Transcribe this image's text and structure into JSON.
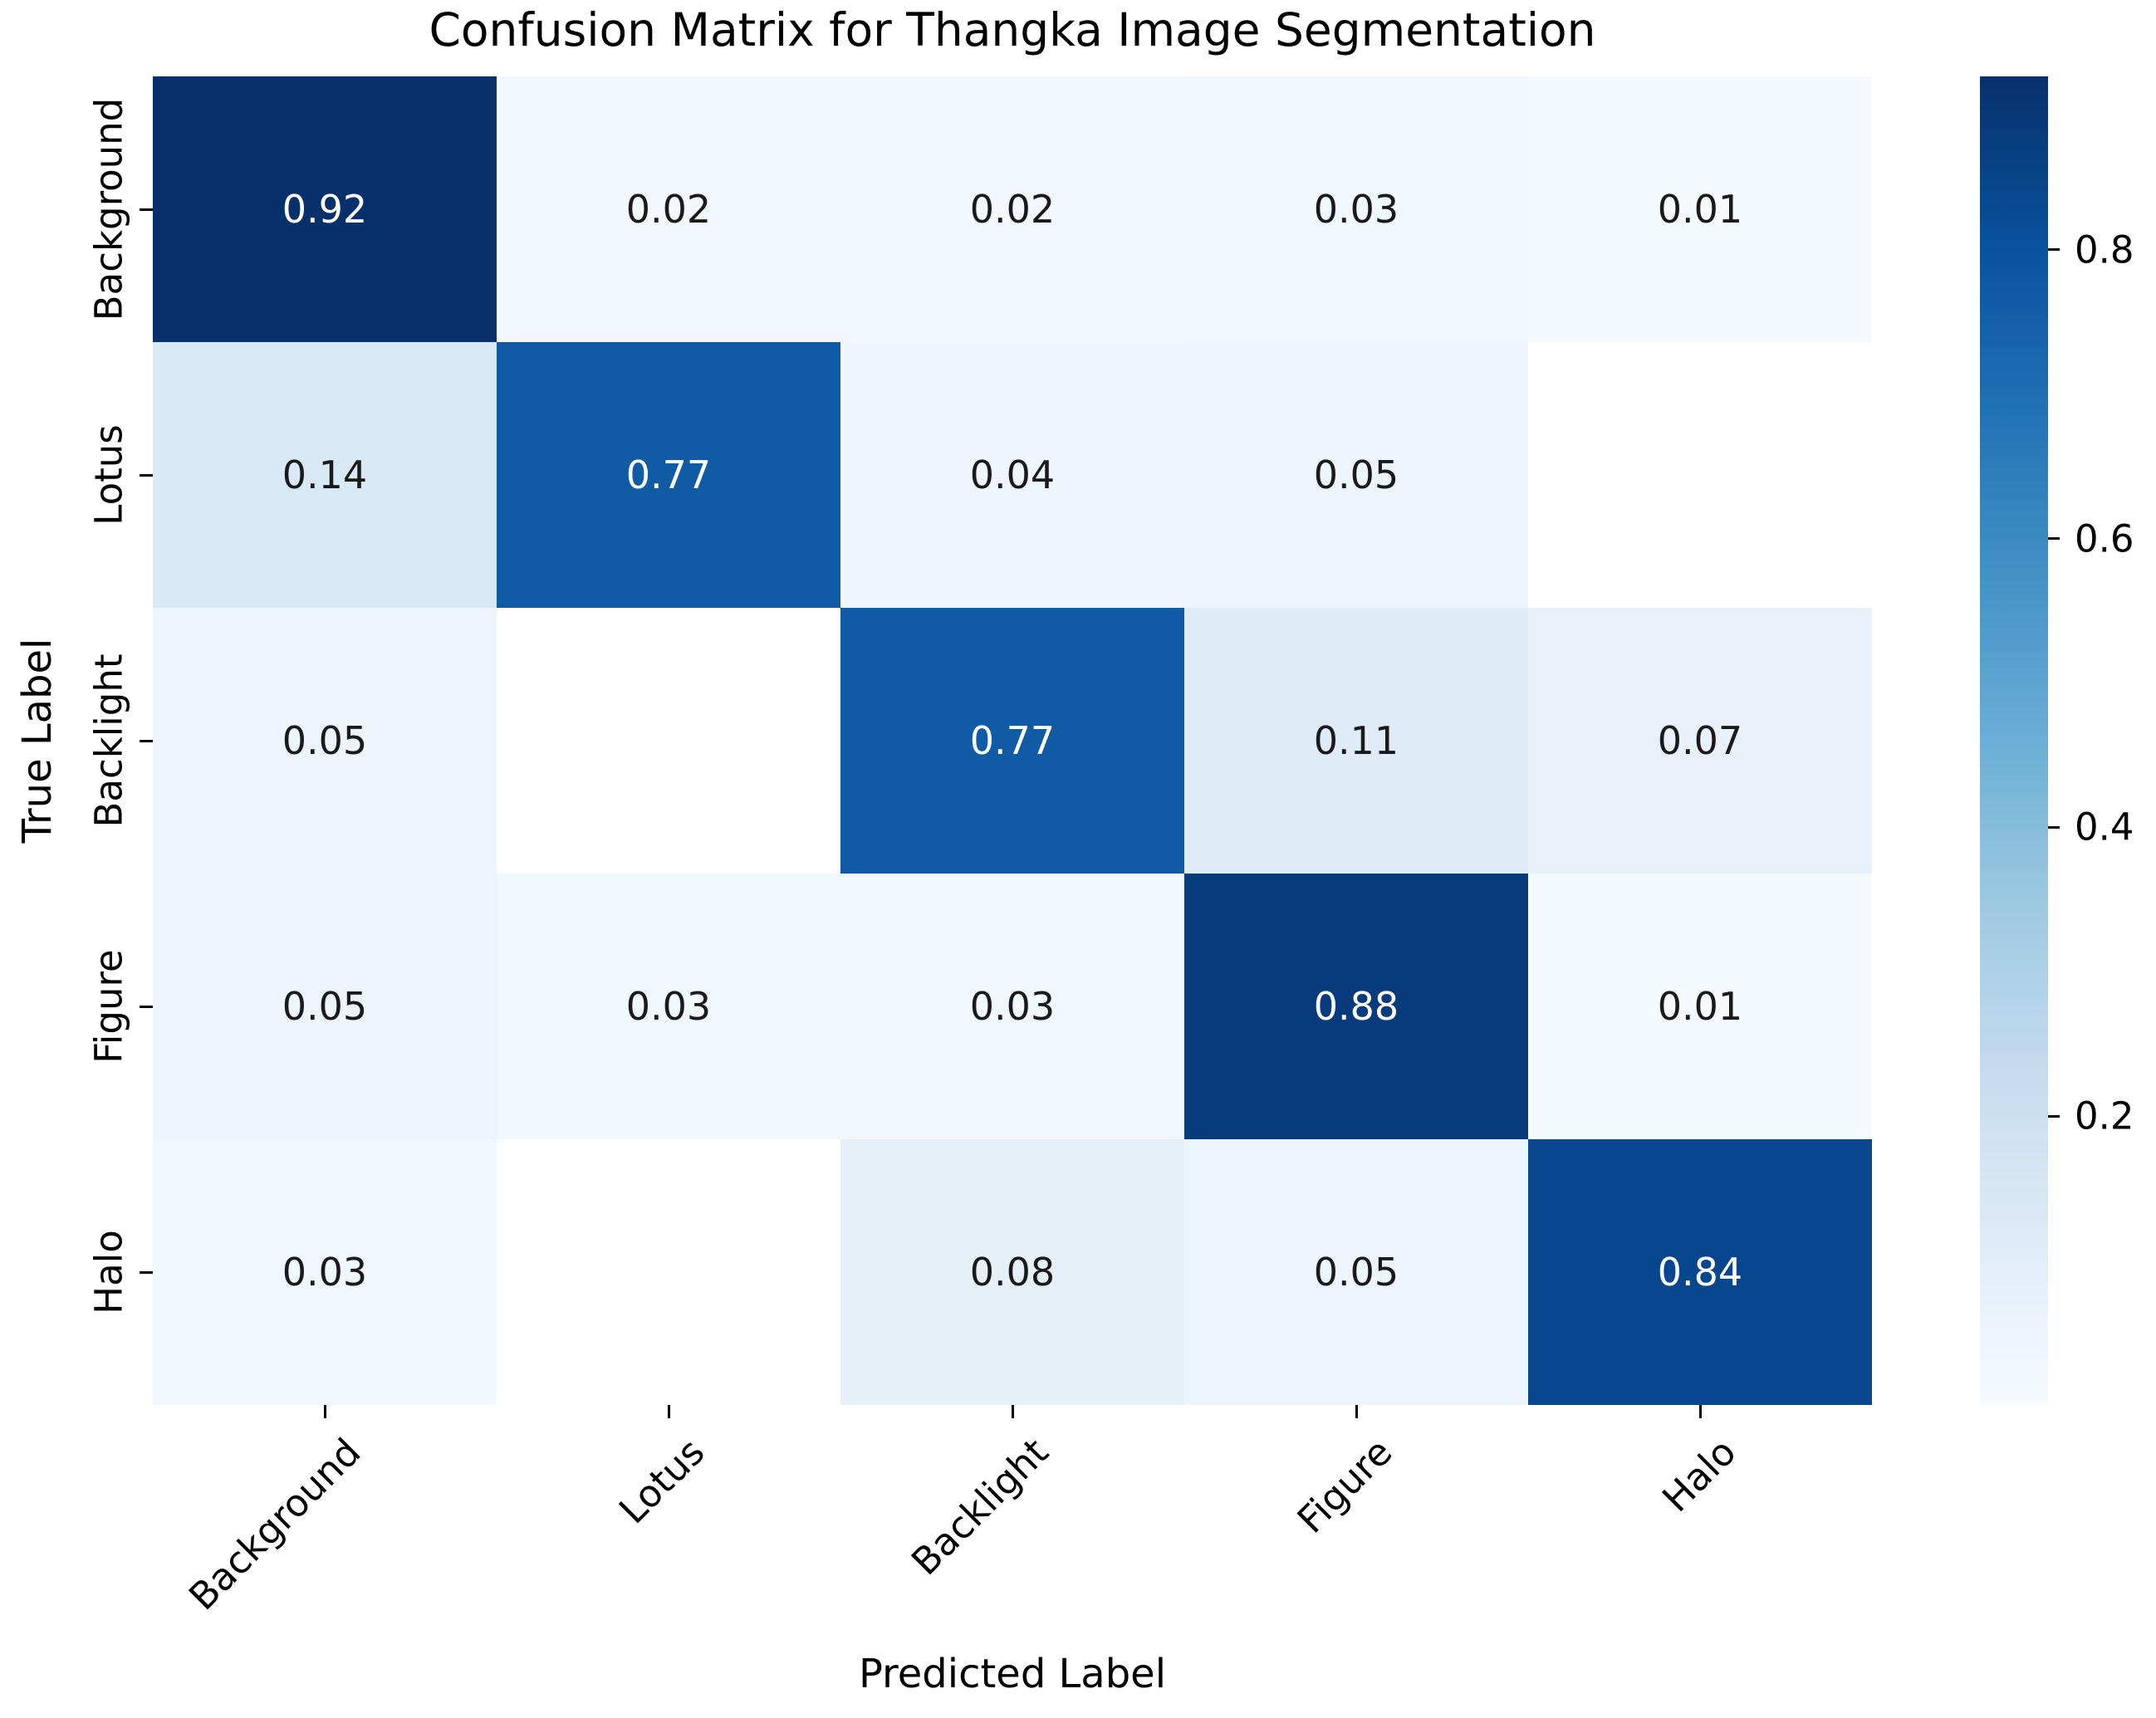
{
  "title": "Confusion Matrix for Thangka Image Segmentation",
  "chart_data": {
    "type": "heatmap",
    "title": "Confusion Matrix for Thangka Image Segmentation",
    "xlabel": "Predicted Label",
    "ylabel": "True Label",
    "x_categories": [
      "Background",
      "Lotus",
      "Backlight",
      "Figure",
      "Halo"
    ],
    "y_categories": [
      "Background",
      "Lotus",
      "Backlight",
      "Figure",
      "Halo"
    ],
    "matrix": [
      [
        0.92,
        0.02,
        0.02,
        0.03,
        0.01
      ],
      [
        0.14,
        0.77,
        0.04,
        0.05,
        null
      ],
      [
        0.05,
        null,
        0.77,
        0.11,
        0.07
      ],
      [
        0.05,
        0.03,
        0.03,
        0.88,
        0.01
      ],
      [
        0.03,
        null,
        0.08,
        0.05,
        0.84
      ]
    ],
    "annotation_decimals": 2,
    "colormap": "Blues",
    "vmin": 0,
    "vmax": 0.92,
    "colorbar_ticks": [
      0.2,
      0.4,
      0.6,
      0.8
    ],
    "legend_position": "right",
    "grid": false,
    "colors": {
      "cmap_low": "#f7fbff",
      "cmap_high": "#08306b",
      "masked_cell": "#ffffff",
      "annotation_dark": "#1a1a1a",
      "annotation_light": "#ffffff",
      "axis_text": "#000000"
    }
  }
}
